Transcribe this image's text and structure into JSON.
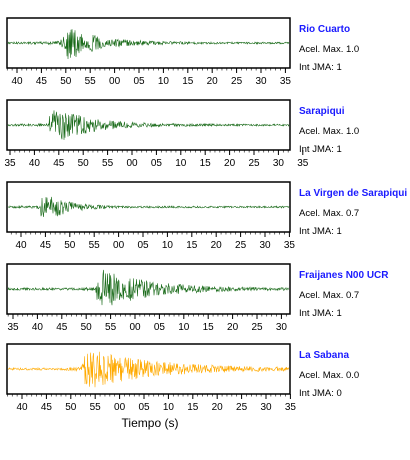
{
  "chart_data": {
    "type": "line",
    "xlabel": "Tiempo (s)",
    "panels": [
      {
        "station": "Rio Cuarto",
        "accel_label": "Acel. Max. 1.0",
        "jma_label": "Int JMA: 1",
        "color": "#1a6b1a",
        "tick_labels": [
          "40",
          "45",
          "50",
          "55",
          "00",
          "05",
          "10",
          "15",
          "20",
          "25",
          "30",
          "35"
        ],
        "first_tick": 40,
        "onset": 49,
        "peak_amp": 0.95,
        "decay": 6
      },
      {
        "station": "Sarapiqui",
        "accel_label": "Acel. Max. 1.0",
        "jma_label": "Int JMA: 1",
        "color": "#1a6b1a",
        "tick_labels": [
          "35",
          "40",
          "45",
          "50",
          "55",
          "00",
          "05",
          "10",
          "15",
          "20",
          "25",
          "30",
          "35"
        ],
        "first_tick": 35,
        "onset": 43,
        "peak_amp": 0.95,
        "decay": 7
      },
      {
        "station": "La Virgen de Sarapiqui",
        "accel_label": "Acel. Max. 0.7",
        "jma_label": "Int JMA: 1",
        "color": "#1a6b1a",
        "tick_labels": [
          "40",
          "45",
          "50",
          "55",
          "00",
          "05",
          "10",
          "15",
          "20",
          "25",
          "30",
          "35"
        ],
        "first_tick": 40,
        "onset": 44,
        "peak_amp": 0.9,
        "decay": 4
      },
      {
        "station": "Fraijanes N00 UCR",
        "accel_label": "Acel. Max. 0.7",
        "jma_label": "Int JMA: 1",
        "color": "#1a6b1a",
        "tick_labels": [
          "35",
          "40",
          "45",
          "50",
          "55",
          "00",
          "05",
          "10",
          "15",
          "20",
          "25",
          "30"
        ],
        "first_tick": 35,
        "onset": 52,
        "peak_amp": 0.95,
        "decay": 10
      },
      {
        "station": "La Sabana",
        "accel_label": "Acel. Max. 0.0",
        "jma_label": "Int JMA: 0",
        "color": "#ffaa00",
        "tick_labels": [
          "40",
          "45",
          "50",
          "55",
          "00",
          "05",
          "10",
          "15",
          "20",
          "25",
          "30",
          "35"
        ],
        "first_tick": 40,
        "onset": 52,
        "peak_amp": 0.95,
        "decay": 14
      }
    ]
  }
}
